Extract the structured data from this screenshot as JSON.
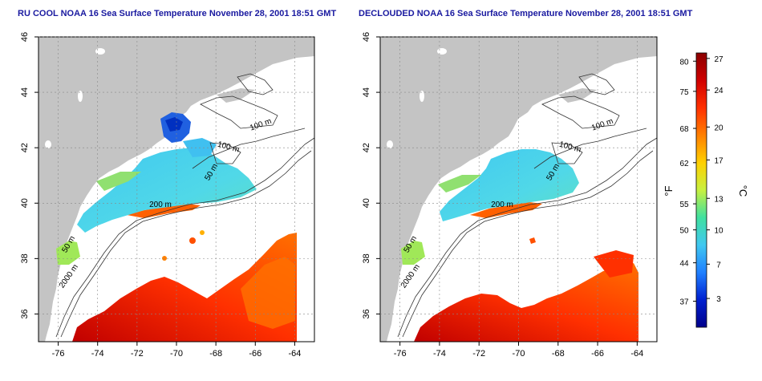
{
  "panels": [
    {
      "title": "RU COOL NOAA 16 Sea Surface Temperature November 28, 2001 18:51 GMT"
    },
    {
      "title": "DECLOUDED NOAA 16 Sea Surface Temperature November 28, 2001 18:51 GMT"
    }
  ],
  "axes": {
    "lon_ticks": [
      "-76",
      "-74",
      "-72",
      "-70",
      "-68",
      "-66",
      "-64"
    ],
    "lat_ticks": [
      "36",
      "38",
      "40",
      "42",
      "44",
      "46"
    ]
  },
  "contour_labels": [
    {
      "text": "100 m"
    },
    {
      "text": "100 m"
    },
    {
      "text": "50 m"
    },
    {
      "text": "200 m"
    },
    {
      "text": "50 m"
    },
    {
      "text": "2000 m"
    }
  ],
  "colorbar": {
    "left_unit": "°F",
    "right_unit": "°C",
    "f_ticks": [
      "80",
      "75",
      "68",
      "62",
      "55",
      "50",
      "44",
      "37"
    ],
    "c_ticks": [
      "27",
      "24",
      "20",
      "17",
      "13",
      "10",
      "7",
      "3"
    ],
    "colors": [
      "#8b0000",
      "#d00000",
      "#ff3000",
      "#ff8000",
      "#ffd000",
      "#c8f040",
      "#40e0a0",
      "#40c8f0",
      "#2080ff",
      "#0020d0",
      "#00008b"
    ]
  },
  "colors": {
    "land": "#c4c4c4",
    "ocean": "#ffffff",
    "title": "#1a1aa0"
  }
}
